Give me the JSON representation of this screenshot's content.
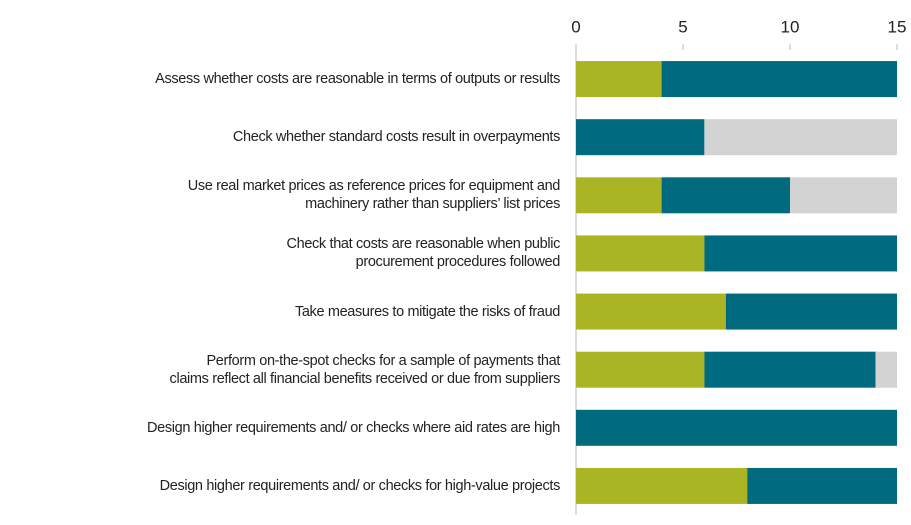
{
  "chart_data": {
    "type": "stacked_barh",
    "categories": [
      "Assess whether costs are reasonable in terms of outputs or results",
      "Check whether standard costs result in overpayments",
      "Use real market prices as reference prices for equipment and\nmachinery rather than suppliers’ list prices",
      "Check that costs are reasonable when public\nprocurement procedures followed",
      "Take measures to mitigate the risks of fraud",
      "Perform on-the-spot checks for a sample of payments that\nclaims reflect all financial benefits received or due from suppliers",
      "Design higher requirements and/ or checks where aid rates are high",
      "Design  higher requirements and/ or checks for high-value projects"
    ],
    "series": [
      {
        "color": "#a9b523",
        "values": [
          4,
          0,
          4,
          6,
          7,
          6,
          0,
          8
        ]
      },
      {
        "color": "#006a7f",
        "values": [
          11,
          6,
          6,
          9,
          8,
          8,
          15,
          7
        ]
      },
      {
        "color": "#d3d3d3",
        "values": [
          0,
          9,
          5,
          0,
          0,
          1,
          0,
          0
        ]
      }
    ],
    "xlim": [
      0,
      15
    ],
    "xticks": [
      0,
      5,
      10,
      15
    ]
  }
}
